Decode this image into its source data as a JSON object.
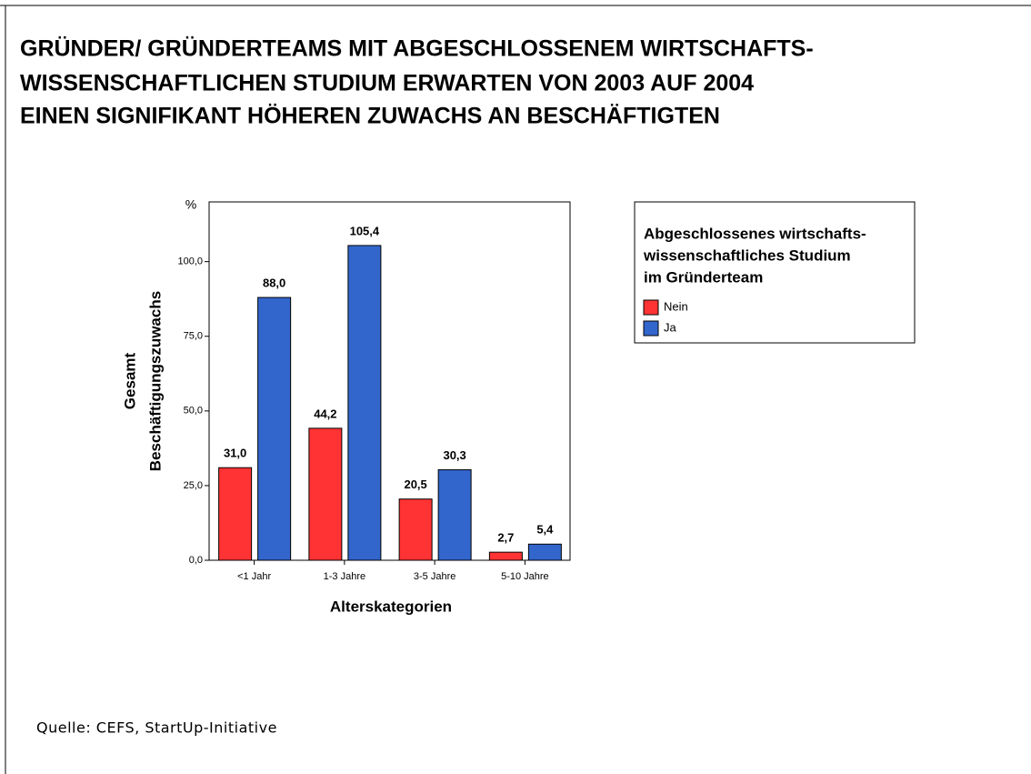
{
  "chart_data": {
    "type": "bar",
    "title": [
      "GRÜNDER/ GRÜNDERTEAMS MIT ABGESCHLOSSENEM WIRTSCHAFTS-",
      "WISSENSCHAFTLICHEN STUDIUM ERWARTEN VON 2003 AUF 2004",
      "EINEN SIGNIFIKANT HÖHEREN ZUWACHS AN BESCHÄFTIGTEN"
    ],
    "y_unit": "%",
    "y_label": [
      "Gesamt",
      "Beschäftigungszuwachs"
    ],
    "x_label": "Alterskategorien",
    "categories": [
      "<1 Jahr",
      "1-3 Jahre",
      "3-5 Jahre",
      "5-10 Jahre"
    ],
    "series": [
      {
        "name": "Nein",
        "color": "#ff3333",
        "values": [
          31.0,
          44.2,
          20.5,
          2.7
        ],
        "value_labels": [
          "31,0",
          "44,2",
          "20,5",
          "2,7"
        ]
      },
      {
        "name": "Ja",
        "color": "#3366cc",
        "values": [
          88.0,
          105.4,
          30.3,
          5.4
        ],
        "value_labels": [
          "88,0",
          "105,4",
          "30,3",
          "5,4"
        ]
      }
    ],
    "ylim": [
      0,
      120
    ],
    "yticks": [
      {
        "value": 0,
        "label": "0,0"
      },
      {
        "value": 25,
        "label": "25,0"
      },
      {
        "value": 50,
        "label": "50,0"
      },
      {
        "value": 75,
        "label": "75,0"
      },
      {
        "value": 100,
        "label": "100,0"
      }
    ],
    "legend_title": [
      "Abgeschlossenes wirtschafts-",
      "wissenschaftliches Studium",
      "im Gründerteam"
    ],
    "source": "Quelle: CEFS, StartUp-Initiative"
  }
}
